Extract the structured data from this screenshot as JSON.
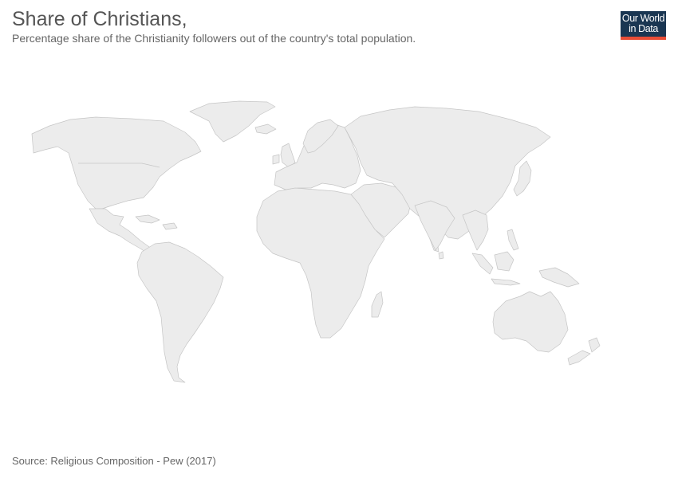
{
  "header": {
    "title": "Share of Christians,",
    "subtitle": "Percentage share of the Christianity followers out of the country's total population."
  },
  "logo": {
    "line1": "Our World",
    "line2": "in Data",
    "background_color": "#1a3652",
    "accent_color": "#e94d36"
  },
  "map": {
    "fill_color": "#ececec",
    "border_color": "#c5c5c5",
    "regions": [
      "North America",
      "Greenland",
      "Central America",
      "South America",
      "Europe",
      "Africa",
      "Asia",
      "Australia",
      "New Zealand",
      "Japan",
      "Indonesia",
      "Madagascar",
      "United Kingdom",
      "Iceland",
      "Sri Lanka",
      "Philippines"
    ]
  },
  "footer": {
    "source": "Source: Religious Composition - Pew (2017)"
  }
}
